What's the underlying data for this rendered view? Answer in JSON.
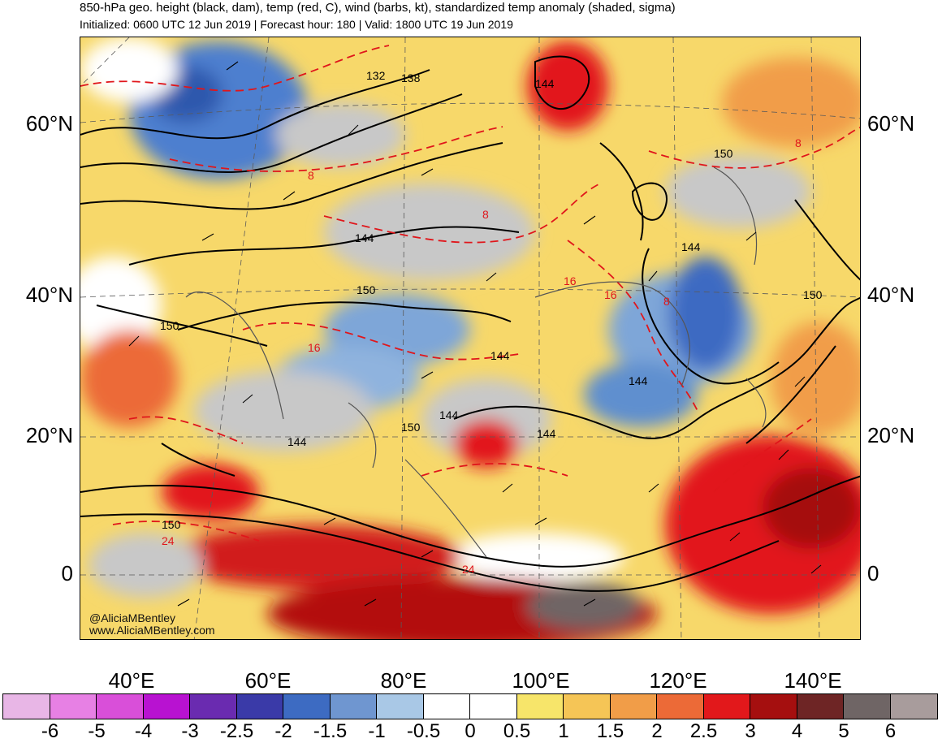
{
  "header": {
    "title": "850-hPa geo. height (black, dam), temp (red, C), wind (barbs, kt), standardized temp anomaly (shaded, sigma)",
    "subtitle": "Initialized: 0600 UTC 12 Jun 2019 | Forecast hour: 180 | Valid: 1800 UTC 19 Jun 2019"
  },
  "axes": {
    "lat_labels": [
      "60°N",
      "40°N",
      "20°N",
      "0"
    ],
    "lon_labels": [
      "40°E",
      "60°E",
      "80°E",
      "100°E",
      "120°E",
      "140°E"
    ]
  },
  "watermark": {
    "handle": "@AliciaMBentley",
    "url": "www.AliciaMBentley.com"
  },
  "contour_labels": {
    "height": [
      "132",
      "138",
      "144",
      "150",
      "144",
      "150",
      "150",
      "144",
      "144",
      "144",
      "150",
      "144",
      "144",
      "150",
      "144",
      "150"
    ],
    "temp": [
      "8",
      "8",
      "8",
      "16",
      "16",
      "8",
      "16",
      "24",
      "24"
    ]
  },
  "colorbar": {
    "colors": [
      "#e8b6e6",
      "#e780e4",
      "#d94fd9",
      "#b812d1",
      "#6a2bb0",
      "#3a3aa8",
      "#3d6bc2",
      "#6f96d0",
      "#a9c8e6",
      "#ffffff",
      "#ffffff",
      "#f7e56a",
      "#f5c556",
      "#f19d48",
      "#ec6a37",
      "#e2181b",
      "#a50f0f",
      "#6e2525",
      "#6f6565",
      "#a89c9c"
    ],
    "ticks": [
      "-6",
      "-5",
      "-4",
      "-3",
      "-2.5",
      "-2",
      "-1.5",
      "-1",
      "-0.5",
      "0",
      "0.5",
      "1",
      "1.5",
      "2",
      "2.5",
      "3",
      "4",
      "5",
      "6"
    ]
  },
  "palette": {
    "height_contour": "#000000",
    "temp_contour": "#e0161b",
    "cold_anomaly": "#3d6bc2",
    "warm_anomaly": "#ec6a37",
    "neutral": "#c8c8c8"
  }
}
